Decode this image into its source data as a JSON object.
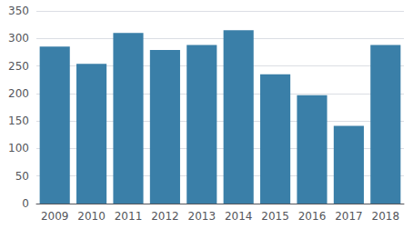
{
  "chart_data": {
    "type": "bar",
    "categories": [
      "2009",
      "2010",
      "2011",
      "2012",
      "2013",
      "2014",
      "2015",
      "2016",
      "2017",
      "2018"
    ],
    "values": [
      285,
      254,
      310,
      279,
      288,
      315,
      235,
      197,
      141,
      288
    ],
    "color": "#3a7fa8",
    "ylim": [
      0,
      350
    ],
    "yticks": [
      0,
      50,
      100,
      150,
      200,
      250,
      300,
      350
    ],
    "grid": true
  }
}
